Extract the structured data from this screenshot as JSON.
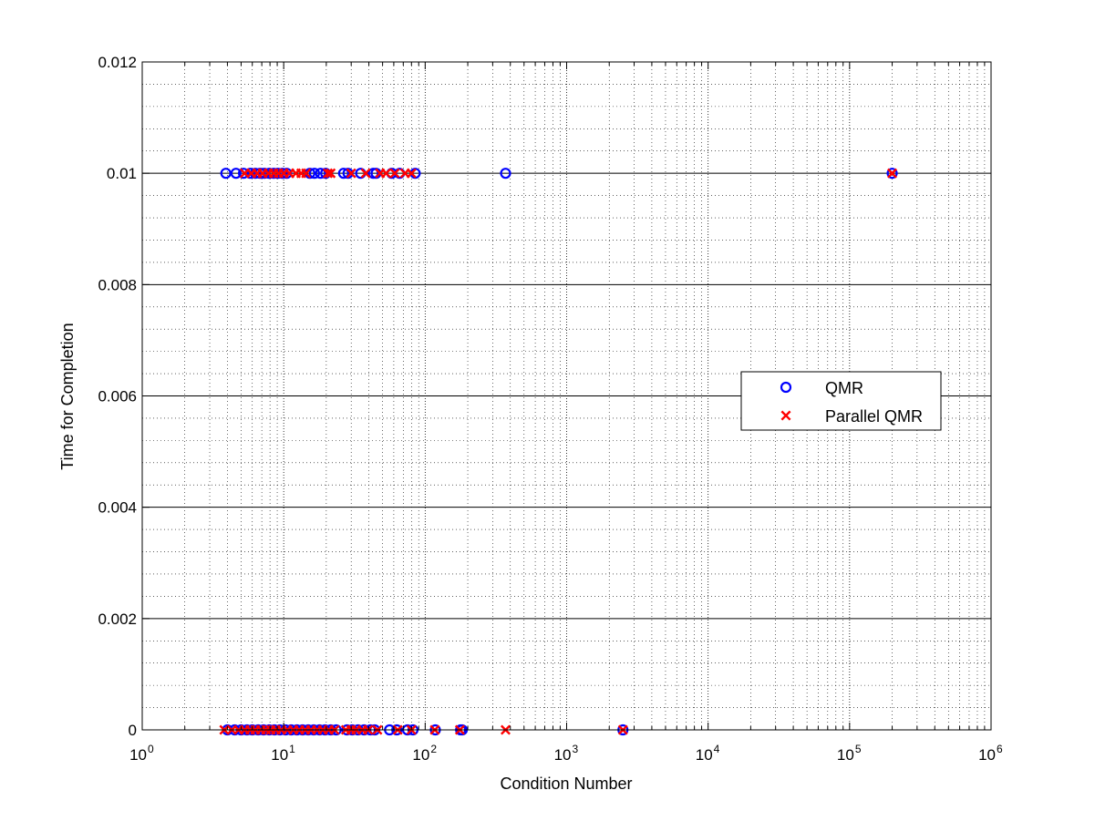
{
  "chart_data": {
    "type": "scatter",
    "xlabel": "Condition Number",
    "ylabel": "Time for Completion",
    "xscale": "log",
    "xlim": [
      1,
      1000000
    ],
    "ylim": [
      0,
      0.012
    ],
    "grid": "on (major solid, minor dotted)",
    "legend_position": "east",
    "x_ticks": [
      {
        "base": "10",
        "exp": "0"
      },
      {
        "base": "10",
        "exp": "1"
      },
      {
        "base": "10",
        "exp": "2"
      },
      {
        "base": "10",
        "exp": "3"
      },
      {
        "base": "10",
        "exp": "4"
      },
      {
        "base": "10",
        "exp": "5"
      },
      {
        "base": "10",
        "exp": "6"
      }
    ],
    "y_ticks": [
      "0",
      "0.002",
      "0.004",
      "0.006",
      "0.008",
      "0.01",
      "0.012"
    ],
    "series": [
      {
        "name": "QMR",
        "marker": "o",
        "color": "#0000ff",
        "points": [
          [
            3.9,
            0.01
          ],
          [
            4.6,
            0.01
          ],
          [
            5.2,
            0.01
          ],
          [
            5.8,
            0.01
          ],
          [
            6.3,
            0.01
          ],
          [
            6.8,
            0.01
          ],
          [
            7.3,
            0.01
          ],
          [
            7.9,
            0.01
          ],
          [
            8.5,
            0.01
          ],
          [
            9.1,
            0.01
          ],
          [
            9.8,
            0.01
          ],
          [
            10.5,
            0.01
          ],
          [
            15.3,
            0.01
          ],
          [
            16.5,
            0.01
          ],
          [
            18.2,
            0.01
          ],
          [
            19.8,
            0.01
          ],
          [
            26.5,
            0.01
          ],
          [
            28.5,
            0.01
          ],
          [
            35.0,
            0.01
          ],
          [
            43.0,
            0.01
          ],
          [
            45.0,
            0.01
          ],
          [
            58.0,
            0.01
          ],
          [
            66.0,
            0.01
          ],
          [
            85.0,
            0.01
          ],
          [
            370.0,
            0.01
          ],
          [
            200000,
            0.01
          ],
          [
            4.0,
            0
          ],
          [
            4.5,
            0
          ],
          [
            5.0,
            0
          ],
          [
            5.5,
            0
          ],
          [
            6.0,
            0
          ],
          [
            6.6,
            0
          ],
          [
            7.2,
            0
          ],
          [
            7.9,
            0
          ],
          [
            8.6,
            0
          ],
          [
            9.4,
            0
          ],
          [
            10.3,
            0
          ],
          [
            11.3,
            0
          ],
          [
            12.4,
            0
          ],
          [
            13.6,
            0
          ],
          [
            14.9,
            0
          ],
          [
            16.3,
            0
          ],
          [
            17.9,
            0
          ],
          [
            19.6,
            0
          ],
          [
            21.5,
            0
          ],
          [
            23.5,
            0
          ],
          [
            28.0,
            0
          ],
          [
            30.5,
            0
          ],
          [
            33.5,
            0
          ],
          [
            37.0,
            0
          ],
          [
            41.0,
            0
          ],
          [
            44.0,
            0
          ],
          [
            56.0,
            0
          ],
          [
            63.0,
            0
          ],
          [
            75.0,
            0
          ],
          [
            82.0,
            0
          ],
          [
            118.0,
            0
          ],
          [
            178.0,
            0
          ],
          [
            183.0,
            0
          ],
          [
            2500,
            0
          ]
        ]
      },
      {
        "name": "Parallel QMR",
        "marker": "x",
        "color": "#ff0000",
        "points": [
          [
            5.3,
            0.01
          ],
          [
            5.9,
            0.01
          ],
          [
            6.5,
            0.01
          ],
          [
            7.1,
            0.01
          ],
          [
            7.8,
            0.01
          ],
          [
            8.5,
            0.01
          ],
          [
            9.2,
            0.01
          ],
          [
            10.0,
            0.01
          ],
          [
            11.0,
            0.01
          ],
          [
            12.2,
            0.01
          ],
          [
            13.3,
            0.01
          ],
          [
            14.4,
            0.01
          ],
          [
            20.5,
            0.01
          ],
          [
            21.5,
            0.01
          ],
          [
            30.0,
            0.01
          ],
          [
            38.0,
            0.01
          ],
          [
            48.0,
            0.01
          ],
          [
            53.0,
            0.01
          ],
          [
            61.0,
            0.01
          ],
          [
            72.0,
            0.01
          ],
          [
            80.0,
            0.01
          ],
          [
            200000,
            0.01
          ],
          [
            3.8,
            0
          ],
          [
            4.3,
            0
          ],
          [
            4.8,
            0
          ],
          [
            5.3,
            0
          ],
          [
            5.8,
            0
          ],
          [
            6.3,
            0
          ],
          [
            6.9,
            0
          ],
          [
            7.5,
            0
          ],
          [
            8.1,
            0
          ],
          [
            8.8,
            0
          ],
          [
            9.6,
            0
          ],
          [
            10.6,
            0
          ],
          [
            11.7,
            0
          ],
          [
            12.9,
            0
          ],
          [
            14.2,
            0
          ],
          [
            15.6,
            0
          ],
          [
            17.2,
            0
          ],
          [
            18.9,
            0
          ],
          [
            20.8,
            0
          ],
          [
            22.9,
            0
          ],
          [
            27.5,
            0
          ],
          [
            30.0,
            0
          ],
          [
            32.5,
            0
          ],
          [
            36.0,
            0
          ],
          [
            39.5,
            0
          ],
          [
            46.0,
            0
          ],
          [
            64.0,
            0
          ],
          [
            80.0,
            0
          ],
          [
            117.0,
            0
          ],
          [
            176.0,
            0
          ],
          [
            370.0,
            0
          ],
          [
            2500,
            0
          ]
        ]
      }
    ]
  }
}
